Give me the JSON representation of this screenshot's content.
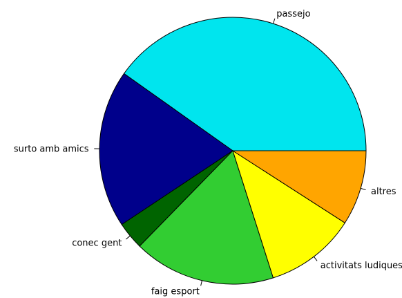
{
  "chart_data": {
    "type": "pie",
    "title": "",
    "start_angle_deg": 0,
    "direction": "counterclockwise",
    "slices": [
      {
        "label": "passejo",
        "value": 42.0,
        "color": "#00E5EE"
      },
      {
        "label": "surto amb amics",
        "value": 20.0,
        "color": "#00008B"
      },
      {
        "label": "conec gent",
        "value": 3.5,
        "color": "#006400"
      },
      {
        "label": "faig esport",
        "value": 18.0,
        "color": "#32CD32"
      },
      {
        "label": "activitats ludiques",
        "value": 11.5,
        "color": "#FFFF00"
      },
      {
        "label": "altres",
        "value": 9.5,
        "color": "#FFA500"
      }
    ]
  }
}
